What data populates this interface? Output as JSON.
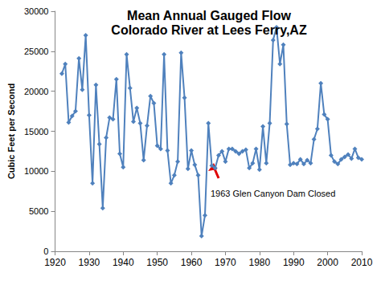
{
  "chart_data": {
    "type": "line",
    "title": "Mean Annual Gauged Flow",
    "subtitle": "Colorado River at Lees Ferry,AZ",
    "y_label": "Cubic Feet per Second",
    "annotation": "1963 Glen Canyon Dam Closed",
    "color": "#4f81bd",
    "marker": "diamond",
    "grid": false,
    "x": [
      1922,
      1923,
      1924,
      1925,
      1926,
      1927,
      1928,
      1929,
      1930,
      1931,
      1932,
      1933,
      1934,
      1935,
      1936,
      1937,
      1938,
      1939,
      1940,
      1941,
      1942,
      1943,
      1944,
      1945,
      1946,
      1947,
      1948,
      1949,
      1950,
      1951,
      1952,
      1953,
      1954,
      1955,
      1956,
      1957,
      1958,
      1959,
      1960,
      1961,
      1962,
      1963,
      1964,
      1965,
      1966,
      1967,
      1968,
      1969,
      1970,
      1971,
      1972,
      1973,
      1974,
      1975,
      1976,
      1977,
      1978,
      1979,
      1980,
      1981,
      1982,
      1983,
      1984,
      1985,
      1986,
      1987,
      1988,
      1989,
      1990,
      1991,
      1992,
      1993,
      1994,
      1995,
      1996,
      1997,
      1998,
      1999,
      2000,
      2001,
      2002,
      2003,
      2004,
      2005,
      2006,
      2007,
      2008,
      2009,
      2010
    ],
    "values": [
      22200,
      23400,
      16100,
      16900,
      17500,
      24100,
      20200,
      27000,
      17000,
      8500,
      20800,
      13400,
      5400,
      14200,
      16700,
      16500,
      21500,
      12200,
      10500,
      24600,
      20400,
      16200,
      17900,
      16000,
      11400,
      15700,
      19400,
      18500,
      13200,
      12800,
      24600,
      12600,
      8500,
      9500,
      11200,
      24800,
      19200,
      10300,
      12600,
      10800,
      9500,
      1900,
      4500,
      16000,
      10700,
      10400,
      12000,
      12500,
      11200,
      12800,
      12800,
      12500,
      12200,
      12500,
      12700,
      10400,
      11000,
      12800,
      10200,
      15600,
      11000,
      16000,
      26400,
      28000,
      23400,
      25800,
      15900,
      10800,
      11000,
      10900,
      11500,
      10900,
      11400,
      11000,
      14000,
      15300,
      21000,
      17100,
      16500,
      12000,
      11200,
      10900,
      11500,
      11800,
      12100,
      11600,
      12800,
      11700,
      11500
    ],
    "xlim": [
      1920,
      2010
    ],
    "xticks": [
      1920,
      1930,
      1940,
      1950,
      1960,
      1970,
      1980,
      1990,
      2000,
      2010
    ],
    "ylim": [
      0,
      30000
    ],
    "yticks": [
      0,
      5000,
      10000,
      15000,
      20000,
      25000,
      30000
    ]
  }
}
